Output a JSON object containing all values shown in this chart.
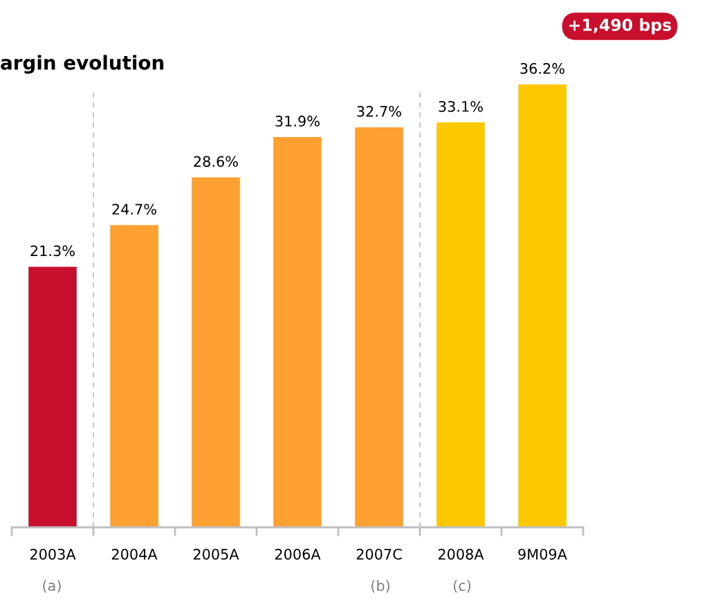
{
  "chart_data": {
    "type": "bar",
    "title": "argin evolution",
    "categories": [
      "2003A",
      "2004A",
      "2005A",
      "2006A",
      "2007C",
      "2008A",
      "9M09A"
    ],
    "values": [
      21.3,
      24.7,
      28.6,
      31.9,
      32.7,
      33.1,
      36.2
    ],
    "colors": [
      "#c8102e",
      "#ffa033",
      "#ffa033",
      "#ffa033",
      "#ffa033",
      "#fcc800",
      "#fcc800"
    ],
    "value_labels": [
      "21.3%",
      "24.7%",
      "28.6%",
      "31.9%",
      "32.7%",
      "33.1%",
      "36.2%"
    ],
    "annotations": [
      "+1,490 bps",
      "(a)",
      "(b)",
      "(c)"
    ],
    "grid": false,
    "legend": false
  }
}
